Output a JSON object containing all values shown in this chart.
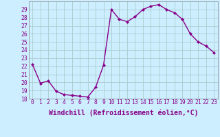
{
  "hours": [
    0,
    1,
    2,
    3,
    4,
    5,
    6,
    7,
    8,
    9,
    10,
    11,
    12,
    13,
    14,
    15,
    16,
    17,
    18,
    19,
    20,
    21,
    22,
    23
  ],
  "values": [
    22.2,
    19.9,
    20.2,
    18.9,
    18.5,
    18.4,
    18.3,
    18.2,
    19.4,
    22.1,
    29.0,
    27.8,
    27.5,
    28.1,
    29.0,
    29.4,
    29.6,
    29.0,
    28.6,
    27.8,
    26.0,
    25.0,
    24.5,
    23.7
  ],
  "line_color": "#880088",
  "marker_color": "#880088",
  "bg_color": "#cceeff",
  "grid_color": "#aacccc",
  "xlabel": "Windchill (Refroidissement éolien,°C)",
  "ylim": [
    18,
    30
  ],
  "yticks": [
    18,
    19,
    20,
    21,
    22,
    23,
    24,
    25,
    26,
    27,
    28,
    29
  ],
  "tick_color": "#880088",
  "font_name": "monospace",
  "tick_fontsize": 5.8,
  "xlabel_fontsize": 7.0
}
